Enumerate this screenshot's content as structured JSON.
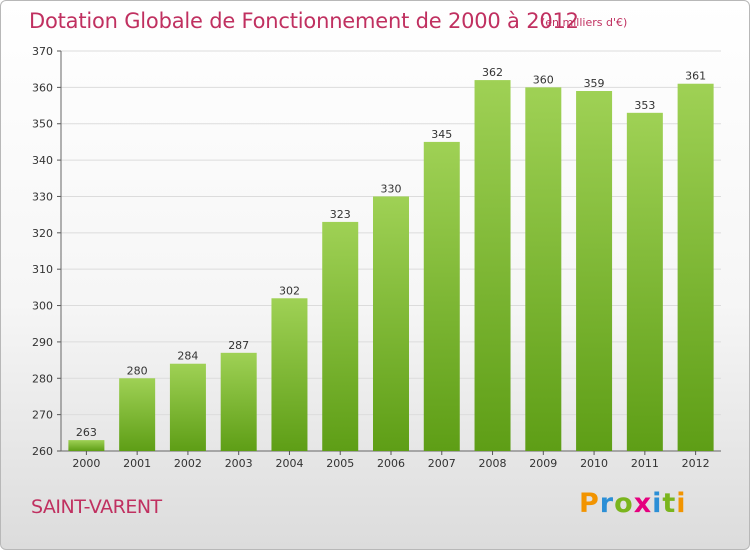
{
  "header": {
    "title": "Dotation Globale de Fonctionnement de 2000 à 2012",
    "subtitle": "(en milliers d'€)"
  },
  "footer": {
    "city": "SAINT-VARENT",
    "logo": "Proxiti"
  },
  "colors": {
    "accent": "#c03060",
    "bar_top": "#9fd155",
    "bar_bottom": "#5e9e16"
  },
  "chart_data": {
    "type": "bar",
    "title": "Dotation Globale de Fonctionnement de 2000 à 2012",
    "subtitle": "(en milliers d'€)",
    "categories": [
      "2000",
      "2001",
      "2002",
      "2003",
      "2004",
      "2005",
      "2006",
      "2007",
      "2008",
      "2009",
      "2010",
      "2011",
      "2012"
    ],
    "values": [
      263,
      280,
      284,
      287,
      302,
      323,
      330,
      345,
      362,
      360,
      359,
      353,
      361
    ],
    "ylim": [
      260,
      370
    ],
    "yticks": [
      260,
      270,
      280,
      290,
      300,
      310,
      320,
      330,
      340,
      350,
      360,
      370
    ],
    "grid": true,
    "legend": "none"
  }
}
